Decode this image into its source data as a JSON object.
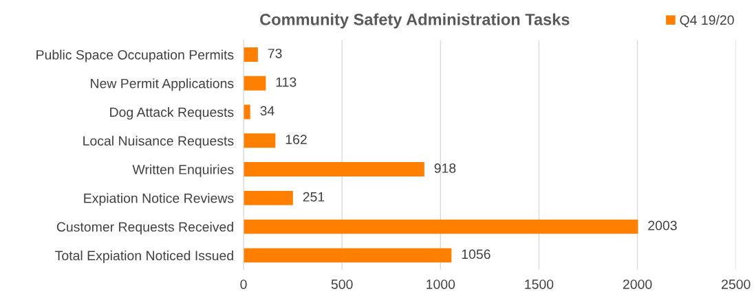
{
  "chart_data": {
    "type": "bar",
    "orientation": "horizontal",
    "title": "Community Safety Administration Tasks",
    "categories": [
      "Public Space Occupation Permits",
      "New Permit Applications",
      "Dog Attack Requests",
      "Local Nuisance Requests",
      "Written Enquiries",
      "Expiation Notice Reviews",
      "Customer Requests Received",
      "Total Expiation Noticed Issued"
    ],
    "series": [
      {
        "name": "Q4 19/20",
        "color": "#ff8000",
        "values": [
          73,
          113,
          34,
          162,
          918,
          251,
          2003,
          1056
        ]
      }
    ],
    "xlim": [
      0,
      2500
    ],
    "xticks": [
      0,
      500,
      1000,
      1500,
      2000,
      2500
    ],
    "grid": "x",
    "legend": "top right",
    "data_labels": true
  }
}
